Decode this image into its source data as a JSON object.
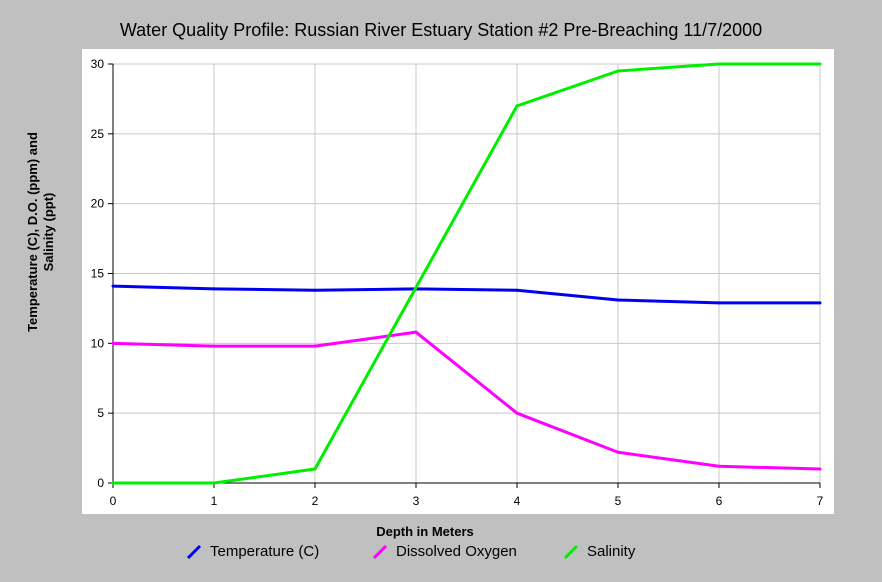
{
  "chart_data": {
    "type": "line",
    "title": "Water Quality Profile: Russian River Estuary Station #2 Pre-Breaching 11/7/2000",
    "xlabel": "Depth in Meters",
    "ylabel": "Temperature (C), D.O. (ppm) and Salinity (ppt)",
    "ylabel_lines": [
      "Temperature (C), D.O. (ppm) and",
      "Salinity (ppt)"
    ],
    "x": [
      0,
      1,
      2,
      3,
      4,
      5,
      6,
      7
    ],
    "xlim": [
      0,
      7
    ],
    "ylim": [
      0,
      30
    ],
    "x_ticks": [
      "0",
      "1",
      "2",
      "3",
      "4",
      "5",
      "6",
      "7"
    ],
    "y_ticks": [
      "0",
      "5",
      "10",
      "15",
      "20",
      "25",
      "30"
    ],
    "grid": true,
    "legend_position": "bottom",
    "series": [
      {
        "name": "Temperature (C)",
        "color": "#0000ee",
        "values": [
          14.1,
          13.9,
          13.8,
          13.9,
          13.8,
          13.1,
          12.9,
          12.9
        ]
      },
      {
        "name": "Dissolved Oxygen",
        "color": "#ff00ff",
        "values": [
          10.0,
          9.8,
          9.8,
          10.8,
          5.0,
          2.2,
          1.2,
          1.0
        ]
      },
      {
        "name": "Salinity",
        "color": "#00ee00",
        "values": [
          0.0,
          0.0,
          1.0,
          14.0,
          27.0,
          29.5,
          30.0,
          30.0
        ]
      }
    ]
  }
}
